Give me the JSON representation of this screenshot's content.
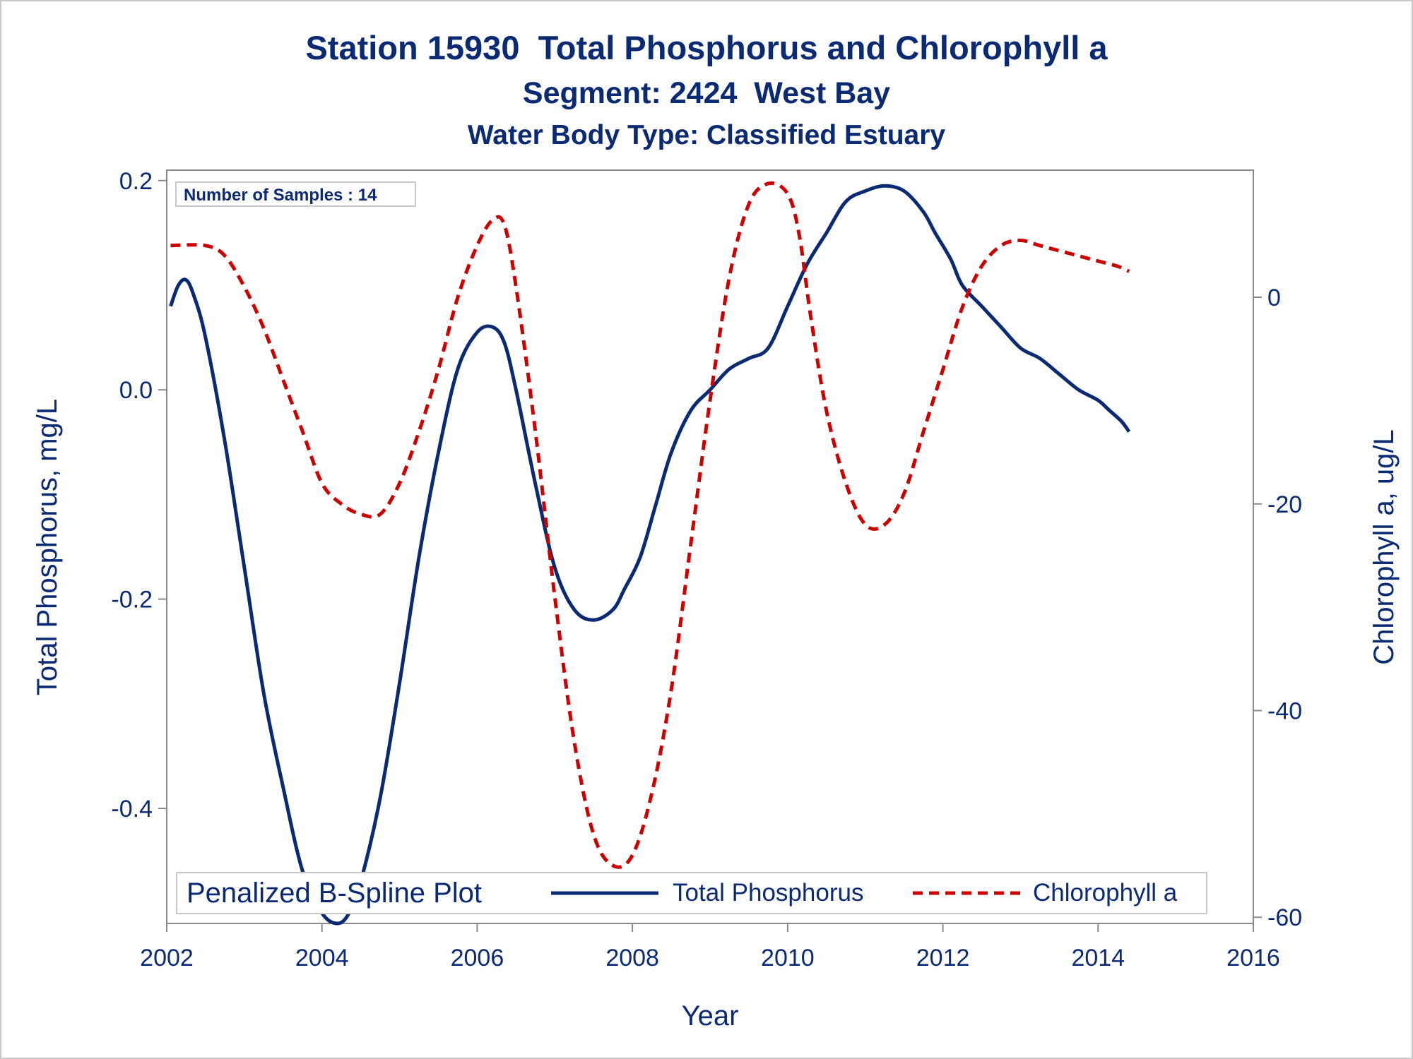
{
  "titles": {
    "line1": "Station 15930  Total Phosphorus and Chlorophyll a",
    "line2": "Segment: 2424  West Bay",
    "line3": "Water Body Type: Classified Estuary"
  },
  "inset_label": "Number of Samples : 14",
  "legend": {
    "title": "Penalized B-Spline Plot",
    "entries": [
      "Total Phosphorus",
      "Chlorophyll a"
    ]
  },
  "colors": {
    "text": "#0b2a74",
    "phosphorus": "#0b2a74",
    "chlorophyll": "#cc0000",
    "axis": "#8a8a8a"
  },
  "chart_data": {
    "type": "line",
    "xlabel": "Year",
    "ylabel": "Total Phosphorus, mg/L",
    "y2label": "Chlorophyll a, ug/L",
    "xlim": [
      2002,
      2016
    ],
    "ylim": [
      -0.51,
      0.21
    ],
    "y2lim": [
      -60.6,
      12.3
    ],
    "xticks": [
      "2002",
      "2004",
      "2006",
      "2008",
      "2010",
      "2012",
      "2014",
      "2016"
    ],
    "yticks": [
      "0.2",
      "0.0",
      "-0.2",
      "-0.4"
    ],
    "y2ticks": [
      "0",
      "-20",
      "-40",
      "-60"
    ],
    "grid": false,
    "legend_position": "bottom-inside",
    "series": [
      {
        "name": "Total Phosphorus",
        "axis": "y",
        "style": "solid",
        "x": [
          2002.05,
          2002.15,
          2002.25,
          2002.35,
          2002.5,
          2002.75,
          2003.0,
          2003.25,
          2003.5,
          2003.75,
          2004.0,
          2004.2,
          2004.35,
          2004.5,
          2004.75,
          2005.0,
          2005.25,
          2005.5,
          2005.75,
          2006.0,
          2006.2,
          2006.35,
          2006.5,
          2006.75,
          2007.0,
          2007.25,
          2007.5,
          2007.75,
          2007.9,
          2008.1,
          2008.3,
          2008.5,
          2008.75,
          2009.0,
          2009.25,
          2009.5,
          2009.75,
          2010.0,
          2010.25,
          2010.5,
          2010.75,
          2011.0,
          2011.25,
          2011.5,
          2011.75,
          2011.9,
          2012.1,
          2012.25,
          2012.5,
          2012.75,
          2013.0,
          2013.25,
          2013.5,
          2013.75,
          2014.0,
          2014.15,
          2014.3,
          2014.4
        ],
        "values": [
          0.08,
          0.1,
          0.105,
          0.09,
          0.05,
          -0.05,
          -0.17,
          -0.29,
          -0.38,
          -0.46,
          -0.5,
          -0.51,
          -0.5,
          -0.47,
          -0.39,
          -0.28,
          -0.16,
          -0.06,
          0.02,
          0.055,
          0.06,
          0.045,
          0.0,
          -0.09,
          -0.17,
          -0.21,
          -0.22,
          -0.21,
          -0.19,
          -0.16,
          -0.11,
          -0.06,
          -0.02,
          0.0,
          0.02,
          0.03,
          0.04,
          0.08,
          0.12,
          0.15,
          0.18,
          0.19,
          0.195,
          0.19,
          0.17,
          0.15,
          0.125,
          0.1,
          0.08,
          0.06,
          0.04,
          0.03,
          0.015,
          0.0,
          -0.01,
          -0.02,
          -0.03,
          -0.04
        ]
      },
      {
        "name": "Chlorophyll a",
        "axis": "y2",
        "style": "dashed",
        "x": [
          2002.05,
          2002.5,
          2002.75,
          2003.0,
          2003.25,
          2003.5,
          2003.75,
          2004.0,
          2004.25,
          2004.5,
          2004.75,
          2005.0,
          2005.25,
          2005.5,
          2005.75,
          2006.0,
          2006.2,
          2006.35,
          2006.5,
          2006.75,
          2007.0,
          2007.25,
          2007.5,
          2007.75,
          2008.0,
          2008.25,
          2008.5,
          2008.75,
          2009.0,
          2009.25,
          2009.5,
          2009.75,
          2010.0,
          2010.15,
          2010.3,
          2010.5,
          2010.75,
          2011.0,
          2011.25,
          2011.5,
          2011.75,
          2012.0,
          2012.25,
          2012.5,
          2012.75,
          2013.0,
          2013.25,
          2013.5,
          2013.75,
          2014.0,
          2014.25,
          2014.4
        ],
        "values": [
          5,
          5,
          4,
          1,
          -3,
          -8,
          -13,
          -18,
          -20,
          -21,
          -21,
          -18,
          -13,
          -7,
          0,
          5,
          7.5,
          7,
          1,
          -13,
          -29,
          -43,
          -52,
          -55,
          -54,
          -48,
          -38,
          -24,
          -10,
          2,
          9,
          11,
          10,
          6,
          -2,
          -11,
          -18,
          -22,
          -22,
          -19,
          -13,
          -7,
          -1,
          3,
          5,
          5.5,
          5,
          4.5,
          4,
          3.5,
          3,
          2.5
        ]
      }
    ]
  }
}
